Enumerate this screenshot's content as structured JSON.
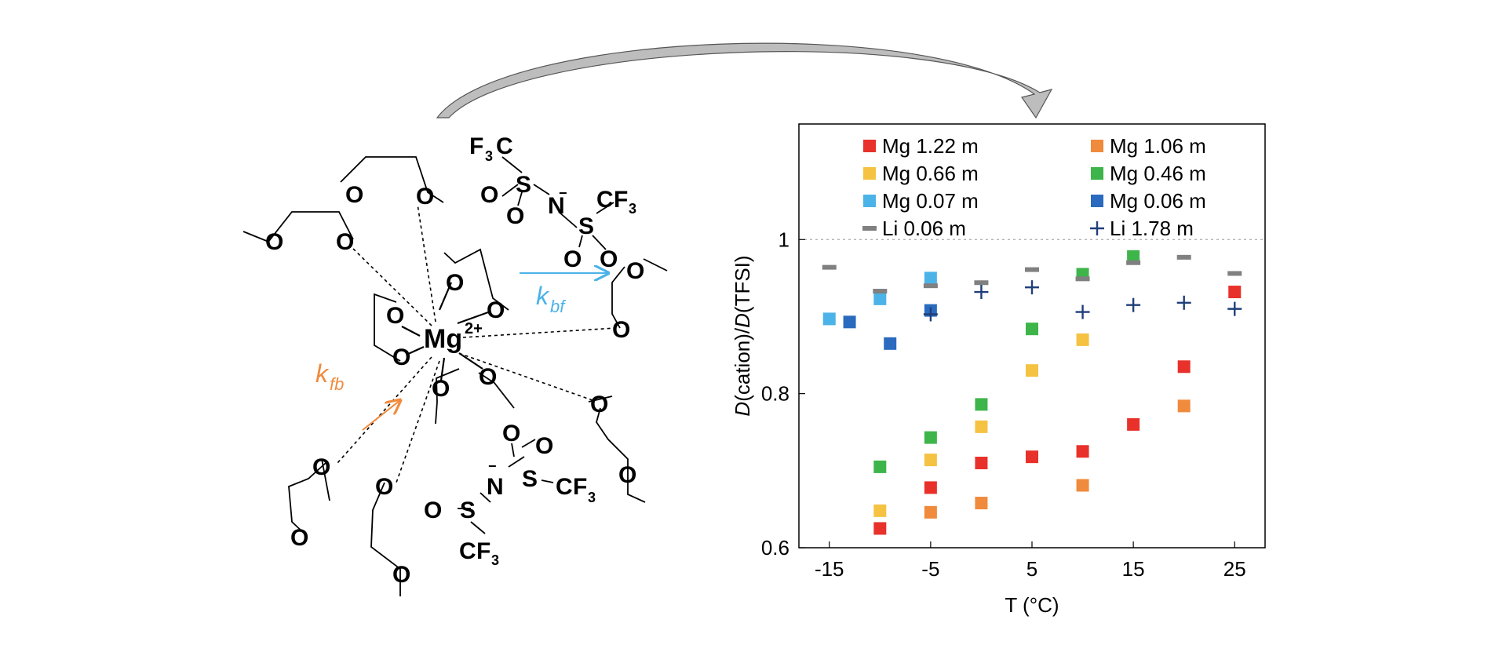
{
  "scheme": {
    "cation_label": "Mg",
    "cation_charge": "2+",
    "rate_forward_symbol": "k",
    "rate_forward_sub": "bf",
    "rate_back_symbol": "k",
    "rate_back_sub": "fb",
    "atoms": {
      "oxygen": "O",
      "nitrogen": "N",
      "sulfur": "S",
      "carbon": "C",
      "fluorine": "F",
      "three": "3",
      "minus": "−"
    },
    "colors": {
      "kbf": "#4bb3e8",
      "kfb": "#f08a3c",
      "bond": "#000000",
      "arrow_fill": "#bdbdbd"
    }
  },
  "chart_data": {
    "type": "scatter",
    "xlabel": "T (°C)",
    "ylabel_parts": [
      "D",
      "(cation)/",
      "D",
      "(TFSI)"
    ],
    "xlim": [
      -18,
      28
    ],
    "ylim": [
      0.6,
      1.15
    ],
    "xticks": [
      -15,
      -5,
      5,
      15,
      25
    ],
    "xtick_labels": [
      "-15",
      "-5",
      "5",
      "15",
      "25"
    ],
    "yticks": [
      0.6,
      0.8,
      1.0
    ],
    "ytick_labels": [
      "0.6",
      "0.8",
      "1"
    ],
    "reference_line": {
      "y": 1.0,
      "style": "dotted",
      "color": "#aaaaaa"
    },
    "legend": {
      "placement": "top",
      "columns": 2
    },
    "series": [
      {
        "name": "Mg 1.22 m",
        "marker": "square",
        "color": "#e8312a",
        "x": [
          -10,
          -5,
          0,
          5,
          10,
          15,
          20,
          25
        ],
        "y": [
          0.625,
          0.678,
          0.71,
          0.718,
          0.725,
          0.76,
          0.835,
          0.932
        ]
      },
      {
        "name": "Mg 1.06 m",
        "marker": "square",
        "color": "#f08a3c",
        "x": [
          -5,
          0,
          10,
          20
        ],
        "y": [
          0.646,
          0.658,
          0.681,
          0.784
        ]
      },
      {
        "name": "Mg 0.66 m",
        "marker": "square",
        "color": "#f5c242",
        "x": [
          -10,
          -5,
          0,
          5,
          10
        ],
        "y": [
          0.648,
          0.714,
          0.757,
          0.83,
          0.87
        ]
      },
      {
        "name": "Mg 0.46 m",
        "marker": "square",
        "color": "#3db54a",
        "x": [
          -10,
          -5,
          0,
          5,
          10,
          15
        ],
        "y": [
          0.705,
          0.743,
          0.786,
          0.884,
          0.955,
          0.978
        ]
      },
      {
        "name": "Mg 0.07 m",
        "marker": "square",
        "color": "#4bb3e8",
        "x": [
          -15,
          -10,
          -5
        ],
        "y": [
          0.897,
          0.923,
          0.95
        ]
      },
      {
        "name": "Mg 0.06 m",
        "marker": "square",
        "color": "#2a6bbf",
        "x": [
          -13,
          -9,
          -5
        ],
        "y": [
          0.893,
          0.865,
          0.908
        ]
      },
      {
        "name": "Li 0.06 m",
        "marker": "dash",
        "color": "#808080",
        "x": [
          -15,
          -10,
          -5,
          0,
          5,
          10,
          15,
          20,
          25
        ],
        "y": [
          0.964,
          0.933,
          0.94,
          0.944,
          0.961,
          0.949,
          0.97,
          0.977,
          0.956
        ]
      },
      {
        "name": "Li 1.78 m",
        "marker": "plus",
        "color": "#1f3f7a",
        "x": [
          -5,
          0,
          5,
          10,
          15,
          20,
          25
        ],
        "y": [
          0.903,
          0.932,
          0.938,
          0.906,
          0.915,
          0.918,
          0.91
        ]
      }
    ]
  }
}
